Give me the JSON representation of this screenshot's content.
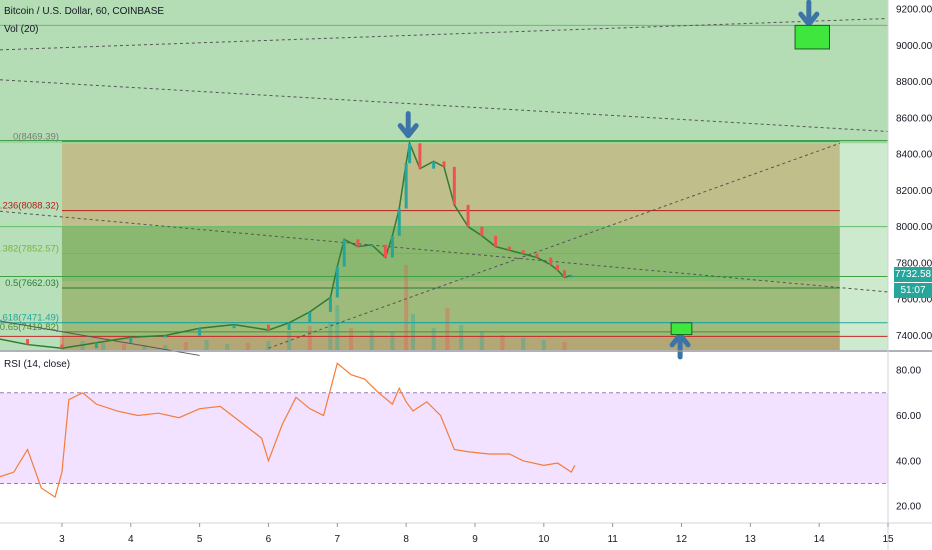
{
  "chart_title": "Bitcoin / U.S. Dollar, 60, COINBASE",
  "volume_label": "Vol (20)",
  "rsi_label": "RSI (14, close)",
  "last_price": "7732.58",
  "countdown": "51:07",
  "colors": {
    "up": "#26a69a",
    "down": "#ef5350",
    "rsi_line": "#f57c3a",
    "rsi_band": "#e6c6ff",
    "zone_green": "#4caf50",
    "arrow": "#3d74a8",
    "marker": "#3ee63e"
  },
  "chart_data": {
    "type": "candlestick",
    "x_axis": {
      "ticks": [
        "3",
        "4",
        "5",
        "6",
        "7",
        "8",
        "9",
        "10",
        "11",
        "12",
        "13",
        "14",
        "15"
      ],
      "range": [
        2.1,
        15
      ]
    },
    "price_axis": {
      "ticks": [
        "7400.00",
        "7600.00",
        "7800.00",
        "8000.00",
        "8200.00",
        "8400.00",
        "8600.00",
        "8800.00",
        "9000.00",
        "9200.00"
      ],
      "range": [
        7320,
        9250
      ]
    },
    "rsi_axis": {
      "ticks": [
        "20.00",
        "40.00",
        "60.00",
        "80.00"
      ],
      "range": [
        13,
        88
      ],
      "band": [
        30,
        70
      ]
    },
    "fib_levels": [
      {
        "label": "0(8469.39)",
        "ratio": 0,
        "price": 8469.39,
        "color": "#7a7a7a"
      },
      {
        "label": "0.236(8088.32)",
        "ratio": 0.236,
        "price": 8088.32,
        "color": "#b71c1c"
      },
      {
        "label": "0.382(7852.57)",
        "ratio": 0.382,
        "price": 7852.57,
        "color": "#7cb342"
      },
      {
        "label": "0.5(7662.03)",
        "ratio": 0.5,
        "price": 7662.03,
        "color": "#2e7d32"
      },
      {
        "label": "0.618(7471.49)",
        "ratio": 0.618,
        "price": 7471.49,
        "color": "#26a69a"
      },
      {
        "label": "0.65(7419.82)",
        "ratio": 0.65,
        "price": 7419.82,
        "color": "#558b2f"
      }
    ],
    "horizontal_lines": [
      {
        "price": 9110,
        "color": "#66bb6a"
      },
      {
        "price": 8475,
        "color": "#43a047"
      },
      {
        "price": 8000,
        "color": "#66bb6a"
      },
      {
        "price": 7725,
        "color": "#43a047"
      },
      {
        "price": 7470,
        "color": "#26a69a"
      },
      {
        "price": 7395,
        "color": "#c62828"
      }
    ],
    "trend_lines": [
      {
        "from": [
          2.1,
          8975
        ],
        "to": [
          15,
          9148
        ],
        "dash": true
      },
      {
        "from": [
          2.1,
          8810
        ],
        "to": [
          15,
          8525
        ],
        "dash": true
      },
      {
        "from": [
          2.1,
          8085
        ],
        "to": [
          15,
          7640
        ],
        "dash": true
      },
      {
        "from": [
          2.1,
          7480
        ],
        "to": [
          5,
          7290
        ],
        "dash": false
      },
      {
        "from": [
          6,
          7330
        ],
        "to": [
          14.3,
          8460
        ],
        "dash": true
      }
    ],
    "zones": [
      {
        "x": [
          2.1,
          15
        ],
        "y": [
          8475,
          9250
        ],
        "fill": "#4caf50",
        "opacity": 0.42
      },
      {
        "x": [
          2.1,
          15
        ],
        "y": [
          8460,
          8475
        ],
        "fill": "#4caf50",
        "opacity": 0.55
      },
      {
        "x": [
          2.1,
          3.0
        ],
        "y": [
          7320,
          8460
        ],
        "fill": "#4caf50",
        "opacity": 0.4
      },
      {
        "x": [
          14.3,
          15
        ],
        "y": [
          7320,
          8460
        ],
        "fill": "#4caf50",
        "opacity": 0.28
      },
      {
        "x": [
          3.0,
          14.3
        ],
        "y": [
          7320,
          8460
        ],
        "fill": "#8d8a2e",
        "opacity": 0.55
      },
      {
        "x": [
          3.0,
          14.3
        ],
        "y": [
          7320,
          7395
        ],
        "fill": "#8d5f2e",
        "opacity": 0.25
      },
      {
        "x": [
          3.0,
          14.3
        ],
        "y": [
          7700,
          8000
        ],
        "fill": "#4caf50",
        "opacity": 0.45
      },
      {
        "x": [
          3.0,
          14.3
        ],
        "y": [
          7395,
          7700
        ],
        "fill": "#4caf50",
        "opacity": 0.28
      }
    ],
    "markers": [
      {
        "type": "arrow-down",
        "at": [
          13.85,
          9150
        ]
      },
      {
        "type": "rect",
        "x": [
          13.65,
          14.15
        ],
        "y": [
          8980,
          9110
        ]
      },
      {
        "type": "arrow-down",
        "at": [
          8.03,
          8535
        ]
      },
      {
        "type": "arrow-up",
        "at": [
          11.98,
          7370
        ]
      },
      {
        "type": "rect",
        "x": [
          11.85,
          12.15
        ],
        "y": [
          7405,
          7470
        ]
      }
    ],
    "price_series": [
      [
        2.1,
        7380
      ],
      [
        2.5,
        7350
      ],
      [
        3.0,
        7330
      ],
      [
        3.5,
        7360
      ],
      [
        4.0,
        7390
      ],
      [
        4.5,
        7400
      ],
      [
        5.0,
        7440
      ],
      [
        5.5,
        7460
      ],
      [
        6.0,
        7430
      ],
      [
        6.3,
        7470
      ],
      [
        6.6,
        7530
      ],
      [
        6.9,
        7610
      ],
      [
        7.0,
        7780
      ],
      [
        7.1,
        7930
      ],
      [
        7.3,
        7890
      ],
      [
        7.5,
        7900
      ],
      [
        7.7,
        7830
      ],
      [
        7.8,
        7950
      ],
      [
        7.9,
        8100
      ],
      [
        8.0,
        8350
      ],
      [
        8.05,
        8460
      ],
      [
        8.2,
        8320
      ],
      [
        8.4,
        8360
      ],
      [
        8.55,
        8330
      ],
      [
        8.7,
        8120
      ],
      [
        8.9,
        8000
      ],
      [
        9.1,
        7950
      ],
      [
        9.3,
        7890
      ],
      [
        9.5,
        7870
      ],
      [
        9.7,
        7850
      ],
      [
        9.9,
        7830
      ],
      [
        10.1,
        7790
      ],
      [
        10.2,
        7760
      ],
      [
        10.3,
        7720
      ],
      [
        10.4,
        7732
      ]
    ],
    "rsi_series": [
      [
        2.1,
        33
      ],
      [
        2.3,
        35
      ],
      [
        2.5,
        45
      ],
      [
        2.7,
        28
      ],
      [
        2.9,
        24
      ],
      [
        3.0,
        35
      ],
      [
        3.1,
        67
      ],
      [
        3.3,
        70
      ],
      [
        3.5,
        65
      ],
      [
        3.8,
        62
      ],
      [
        4.1,
        60
      ],
      [
        4.4,
        61
      ],
      [
        4.7,
        59
      ],
      [
        5.0,
        63
      ],
      [
        5.3,
        64
      ],
      [
        5.6,
        57
      ],
      [
        5.9,
        50
      ],
      [
        6.0,
        40
      ],
      [
        6.2,
        56
      ],
      [
        6.4,
        68
      ],
      [
        6.6,
        63
      ],
      [
        6.8,
        60
      ],
      [
        7.0,
        83
      ],
      [
        7.2,
        78
      ],
      [
        7.4,
        76
      ],
      [
        7.6,
        70
      ],
      [
        7.8,
        65
      ],
      [
        7.9,
        72
      ],
      [
        8.0,
        66
      ],
      [
        8.1,
        62
      ],
      [
        8.3,
        66
      ],
      [
        8.5,
        60
      ],
      [
        8.7,
        45
      ],
      [
        8.9,
        44
      ],
      [
        9.2,
        43
      ],
      [
        9.5,
        43
      ],
      [
        9.7,
        40
      ],
      [
        10.0,
        38
      ],
      [
        10.2,
        39
      ],
      [
        10.4,
        35
      ],
      [
        10.45,
        38
      ]
    ],
    "volume_series": [
      [
        3.0,
        14
      ],
      [
        3.3,
        9
      ],
      [
        3.6,
        7
      ],
      [
        3.9,
        6
      ],
      [
        4.2,
        5
      ],
      [
        4.5,
        5
      ],
      [
        4.8,
        8
      ],
      [
        5.1,
        10
      ],
      [
        5.4,
        6
      ],
      [
        5.7,
        7
      ],
      [
        6.0,
        9
      ],
      [
        6.3,
        18
      ],
      [
        6.6,
        24
      ],
      [
        6.9,
        28
      ],
      [
        7.0,
        45
      ],
      [
        7.2,
        22
      ],
      [
        7.5,
        20
      ],
      [
        7.8,
        18
      ],
      [
        8.0,
        85
      ],
      [
        8.1,
        36
      ],
      [
        8.4,
        22
      ],
      [
        8.6,
        42
      ],
      [
        8.8,
        25
      ],
      [
        9.1,
        18
      ],
      [
        9.4,
        15
      ],
      [
        9.7,
        12
      ],
      [
        10.0,
        10
      ],
      [
        10.3,
        8
      ]
    ]
  }
}
